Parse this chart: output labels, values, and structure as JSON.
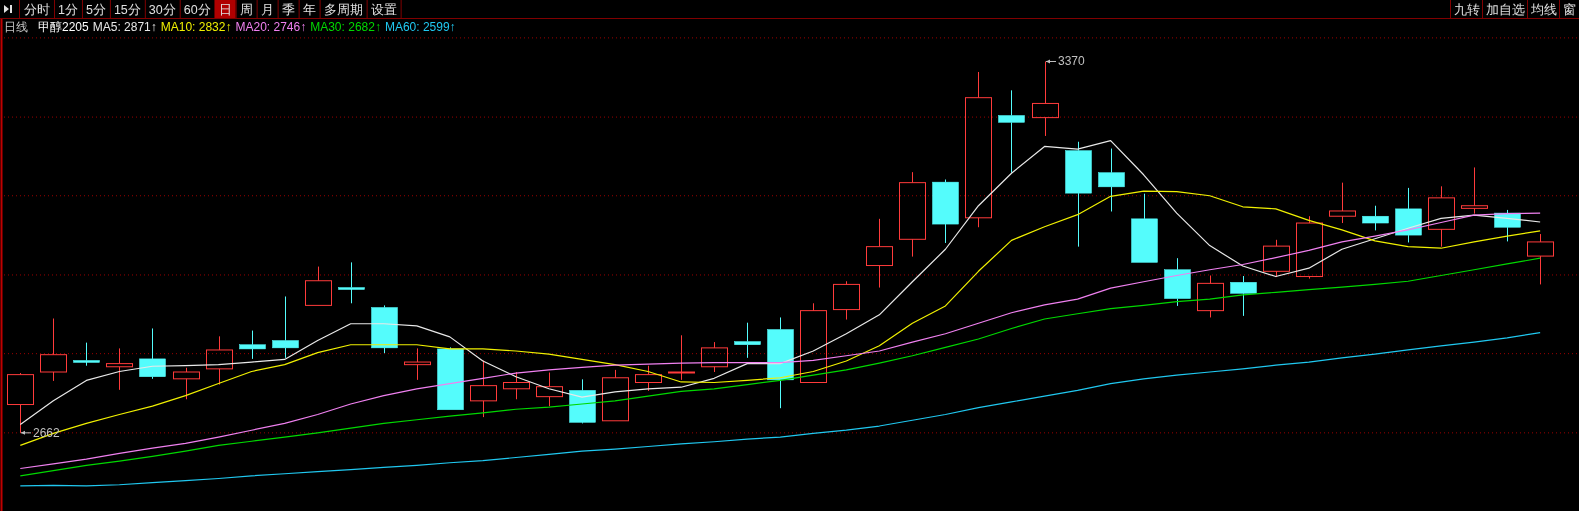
{
  "chart_data": {
    "type": "candlestick",
    "title": "甲醇2205",
    "subtitle": "日线",
    "categories": [
      null,
      null,
      null,
      null,
      null,
      null,
      null,
      null,
      null,
      null,
      null,
      null,
      null,
      null,
      null,
      null,
      null,
      null,
      null,
      null,
      null,
      null,
      null,
      null,
      null,
      null,
      null,
      null,
      null,
      null,
      null,
      null,
      null,
      null,
      null,
      null,
      null,
      null,
      null,
      null,
      null,
      null,
      null,
      null,
      null,
      null,
      null
    ],
    "ohlc": [
      [
        2716,
        2776,
        2662,
        2773
      ],
      [
        2778,
        2880,
        2761,
        2811
      ],
      [
        2800,
        2834,
        2790,
        2799
      ],
      [
        2788,
        2823,
        2744,
        2794
      ],
      [
        2803,
        2861,
        2765,
        2769
      ],
      [
        2765,
        2786,
        2726,
        2778
      ],
      [
        2784,
        2846,
        2754,
        2820
      ],
      [
        2830,
        2857,
        2803,
        2822
      ],
      [
        2838,
        2922,
        2805,
        2824
      ],
      [
        2905,
        2979,
        2905,
        2952
      ],
      [
        2939,
        2987,
        2909,
        2938
      ],
      [
        2901,
        2905,
        2814,
        2824
      ],
      [
        2792,
        2823,
        2763,
        2797
      ],
      [
        2822,
        2825,
        2706,
        2706
      ],
      [
        2723,
        2800,
        2692,
        2752
      ],
      [
        2746,
        2778,
        2726,
        2758
      ],
      [
        2731,
        2777,
        2713,
        2750
      ],
      [
        2743,
        2764,
        2680,
        2682
      ],
      [
        2685,
        2782,
        2685,
        2767
      ],
      [
        2758,
        2790,
        2742,
        2773
      ],
      [
        2777,
        2848,
        2763,
        2778
      ],
      [
        2788,
        2835,
        2778,
        2824
      ],
      [
        2836,
        2872,
        2805,
        2830
      ],
      [
        2859,
        2882,
        2709,
        2763
      ],
      [
        2758,
        2909,
        2758,
        2895
      ],
      [
        2897,
        2951,
        2878,
        2945
      ],
      [
        2981,
        3070,
        2939,
        3017
      ],
      [
        3031,
        3159,
        2998,
        3139
      ],
      [
        3140,
        3145,
        3024,
        3060
      ],
      [
        3072,
        3350,
        3054,
        3301
      ],
      [
        3267,
        3315,
        3158,
        3254
      ],
      [
        3263,
        3370,
        3228,
        3290
      ],
      [
        3200,
        3217,
        3017,
        3119
      ],
      [
        3158,
        3204,
        3084,
        3131
      ],
      [
        3070,
        3118,
        2987,
        2987
      ],
      [
        2973,
        2995,
        2904,
        2918
      ],
      [
        2895,
        2962,
        2882,
        2947
      ],
      [
        2949,
        2961,
        2885,
        2928
      ],
      [
        2970,
        3030,
        2959,
        3018
      ],
      [
        2960,
        3075,
        2956,
        3062
      ],
      [
        3075,
        3139,
        3062,
        3085
      ],
      [
        3075,
        3095,
        3048,
        3062
      ],
      [
        3089,
        3129,
        3025,
        3039
      ],
      [
        3050,
        3132,
        3017,
        3110
      ],
      [
        3090,
        3168,
        3080,
        3095
      ],
      [
        3081,
        3087,
        3027,
        3054
      ],
      [
        2999,
        3041,
        2945,
        3026
      ]
    ],
    "series": [
      {
        "name": "MA5: 2871↑",
        "type": "line",
        "color": "#e8e8e8",
        "values": [
          2678,
          2723,
          2762,
          2779,
          2789,
          2790,
          2792,
          2797,
          2802,
          2838,
          2870,
          2870,
          2866,
          2845,
          2799,
          2769,
          2746,
          2730,
          2740,
          2746,
          2749,
          2766,
          2794,
          2794,
          2818,
          2851,
          2887,
          2950,
          3012,
          3095,
          3157,
          3208,
          3203,
          3219,
          3154,
          3081,
          3019,
          2980,
          2960,
          2976,
          3012,
          3032,
          3052,
          3071,
          3077,
          3071,
          3064
        ]
      },
      {
        "name": "MA10: 2832↑",
        "type": "line",
        "color": "#f0f000",
        "values": [
          2638,
          2661,
          2680,
          2697,
          2713,
          2733,
          2756,
          2779,
          2792,
          2815,
          2830,
          2830,
          2830,
          2822,
          2822,
          2818,
          2812,
          2802,
          2792,
          2779,
          2759,
          2758,
          2762,
          2767,
          2779,
          2799,
          2828,
          2871,
          2904,
          2970,
          3029,
          3055,
          3078,
          3113,
          3123,
          3122,
          3114,
          3093,
          3089,
          3067,
          3049,
          3028,
          3017,
          3014,
          3026,
          3037,
          3047
        ]
      },
      {
        "name": "MA20: 2746↑",
        "type": "line",
        "color": "#f080f0",
        "values": [
          2594,
          2603,
          2612,
          2623,
          2633,
          2642,
          2654,
          2667,
          2680,
          2697,
          2717,
          2733,
          2746,
          2756,
          2766,
          2776,
          2782,
          2787,
          2791,
          2793,
          2795,
          2796,
          2796,
          2796,
          2800,
          2809,
          2818,
          2835,
          2851,
          2871,
          2891,
          2906,
          2917,
          2938,
          2950,
          2962,
          2973,
          2983,
          2996,
          3010,
          3026,
          3037,
          3049,
          3063,
          3077,
          3080,
          3081
        ]
      },
      {
        "name": "MA30: 2682↑",
        "type": "line",
        "color": "#00d800",
        "values": [
          2580,
          2590,
          2600,
          2608,
          2617,
          2627,
          2638,
          2646,
          2654,
          2662,
          2671,
          2680,
          2687,
          2694,
          2700,
          2707,
          2711,
          2717,
          2723,
          2732,
          2741,
          2746,
          2754,
          2762,
          2772,
          2782,
          2795,
          2809,
          2825,
          2841,
          2861,
          2879,
          2889,
          2899,
          2905,
          2912,
          2917,
          2925,
          2930,
          2935,
          2940,
          2945,
          2951,
          2962,
          2973,
          2984,
          2995
        ]
      },
      {
        "name": "MA60: 2599↑",
        "type": "line",
        "color": "#20c8f0",
        "values": [
          2561,
          2562,
          2561,
          2563,
          2567,
          2571,
          2575,
          2580,
          2584,
          2588,
          2592,
          2596,
          2600,
          2605,
          2609,
          2615,
          2621,
          2627,
          2631,
          2636,
          2641,
          2645,
          2650,
          2654,
          2661,
          2667,
          2675,
          2686,
          2697,
          2710,
          2721,
          2732,
          2743,
          2756,
          2765,
          2772,
          2778,
          2784,
          2791,
          2797,
          2805,
          2812,
          2820,
          2828,
          2835,
          2843,
          2853
        ]
      }
    ],
    "ylim": [
      2513,
      3451
    ],
    "yticks": [
      {
        "value": 2662,
        "label": null
      },
      {
        "value": 2813,
        "label": null
      },
      {
        "value": 2963,
        "label": null
      },
      {
        "value": 3114,
        "label": null
      },
      {
        "value": 3264,
        "label": null
      },
      {
        "value": 3415,
        "label": null
      }
    ],
    "grid": "y",
    "legend": "top left",
    "annotations": [
      "3370",
      "2662",
      "分时",
      "1分",
      "5分",
      "15分",
      "30分",
      "60分",
      "日",
      "周",
      "月",
      "季",
      "年",
      "多周期",
      "设置",
      "九转",
      "加自选",
      "均线",
      "窗"
    ]
  }
}
